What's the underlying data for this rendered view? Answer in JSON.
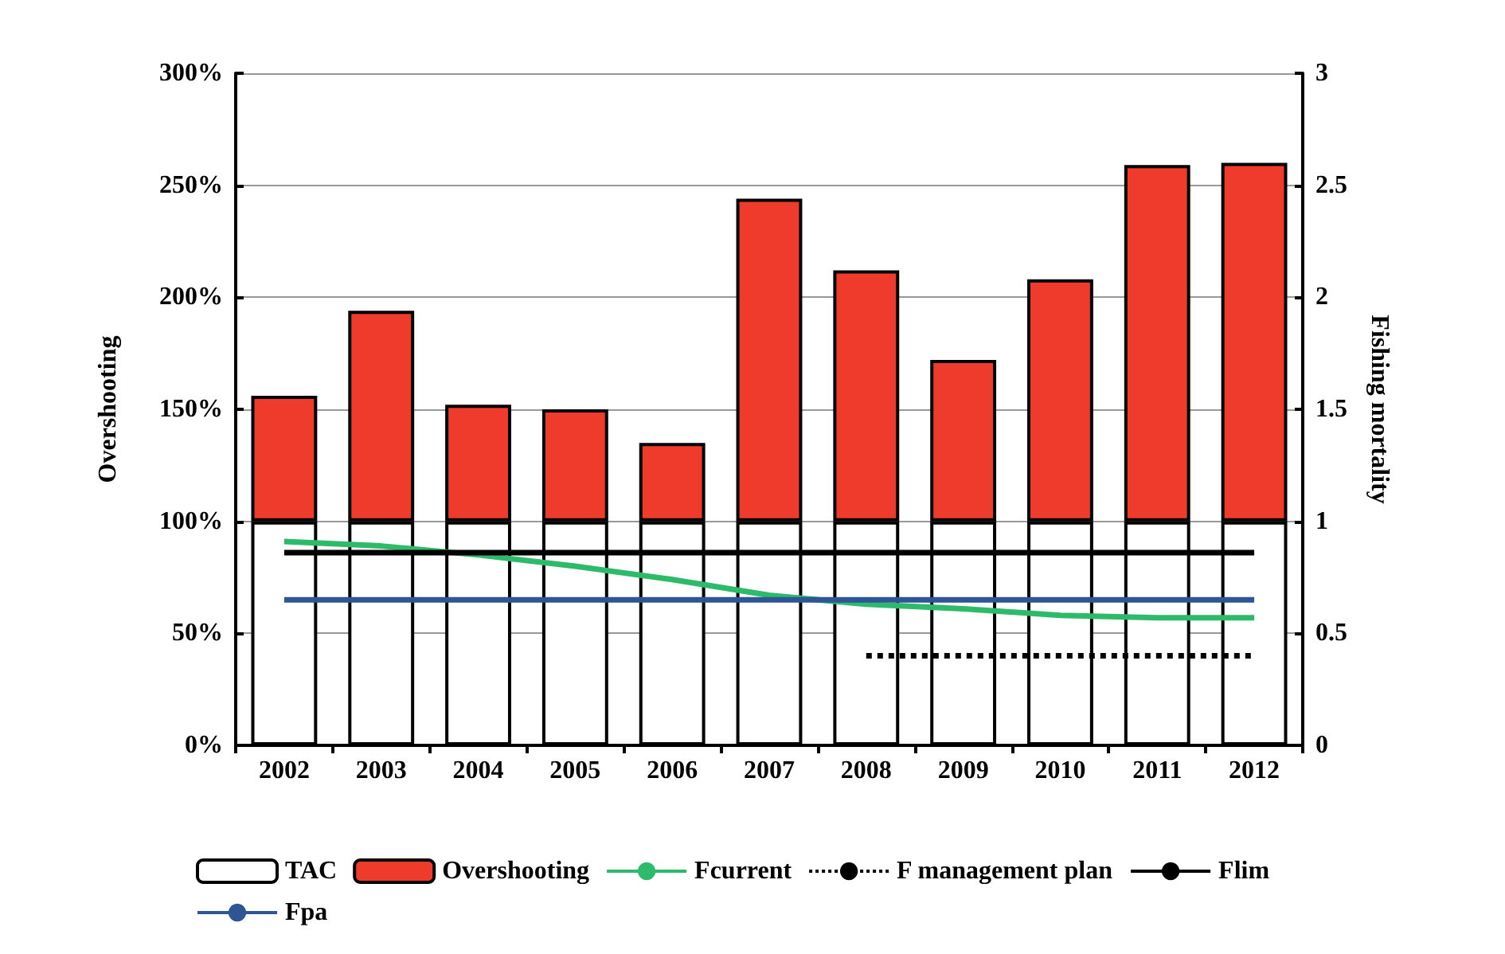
{
  "chart_data": {
    "type": "bar",
    "stacked": true,
    "ylabel": "Overshooting",
    "y2label": "Fishing mortality",
    "categories": [
      "2002",
      "2003",
      "2004",
      "2005",
      "2006",
      "2007",
      "2008",
      "2009",
      "2010",
      "2011",
      "2012"
    ],
    "series": [
      {
        "name": "TAC",
        "color": "#ffffff",
        "values": [
          100,
          100,
          100,
          100,
          100,
          100,
          100,
          100,
          100,
          100,
          100
        ]
      },
      {
        "name": "Overshooting",
        "color": "#ee3b2b",
        "values": [
          56,
          94,
          52,
          50,
          35,
          144,
          112,
          72,
          108,
          159,
          160
        ]
      },
      {
        "name": "Fcurrent",
        "type": "line",
        "axis": "y2",
        "color": "#2dbb6b",
        "values": [
          0.91,
          0.89,
          0.85,
          0.8,
          0.74,
          0.67,
          0.63,
          0.61,
          0.58,
          0.57,
          0.57
        ]
      },
      {
        "name": "F management plan",
        "type": "line",
        "axis": "y2",
        "color": "#000000",
        "line_style": "dotted",
        "values": [
          null,
          null,
          null,
          null,
          null,
          null,
          0.4,
          0.4,
          0.4,
          0.4,
          0.4
        ]
      },
      {
        "name": "Flim",
        "type": "line",
        "axis": "y2",
        "color": "#000000",
        "values": [
          0.86,
          0.86,
          0.86,
          0.86,
          0.86,
          0.86,
          0.86,
          0.86,
          0.86,
          0.86,
          0.86
        ]
      },
      {
        "name": "Fpa",
        "type": "line",
        "axis": "y2",
        "color": "#2f5597",
        "values": [
          0.65,
          0.65,
          0.65,
          0.65,
          0.65,
          0.65,
          0.65,
          0.65,
          0.65,
          0.65,
          0.65
        ]
      }
    ],
    "ylim": [
      0,
      300
    ],
    "yticks": [
      {
        "value": 0,
        "label": "0%"
      },
      {
        "value": 50,
        "label": "50%"
      },
      {
        "value": 100,
        "label": "100%"
      },
      {
        "value": 150,
        "label": "150%"
      },
      {
        "value": 200,
        "label": "200%"
      },
      {
        "value": 250,
        "label": "250%"
      },
      {
        "value": 300,
        "label": "300%"
      }
    ],
    "y2lim": [
      0,
      3
    ],
    "y2ticks": [
      0,
      0.5,
      1,
      1.5,
      2,
      2.5,
      3
    ],
    "grid": "y",
    "legend": "bottom",
    "marker": "none"
  }
}
